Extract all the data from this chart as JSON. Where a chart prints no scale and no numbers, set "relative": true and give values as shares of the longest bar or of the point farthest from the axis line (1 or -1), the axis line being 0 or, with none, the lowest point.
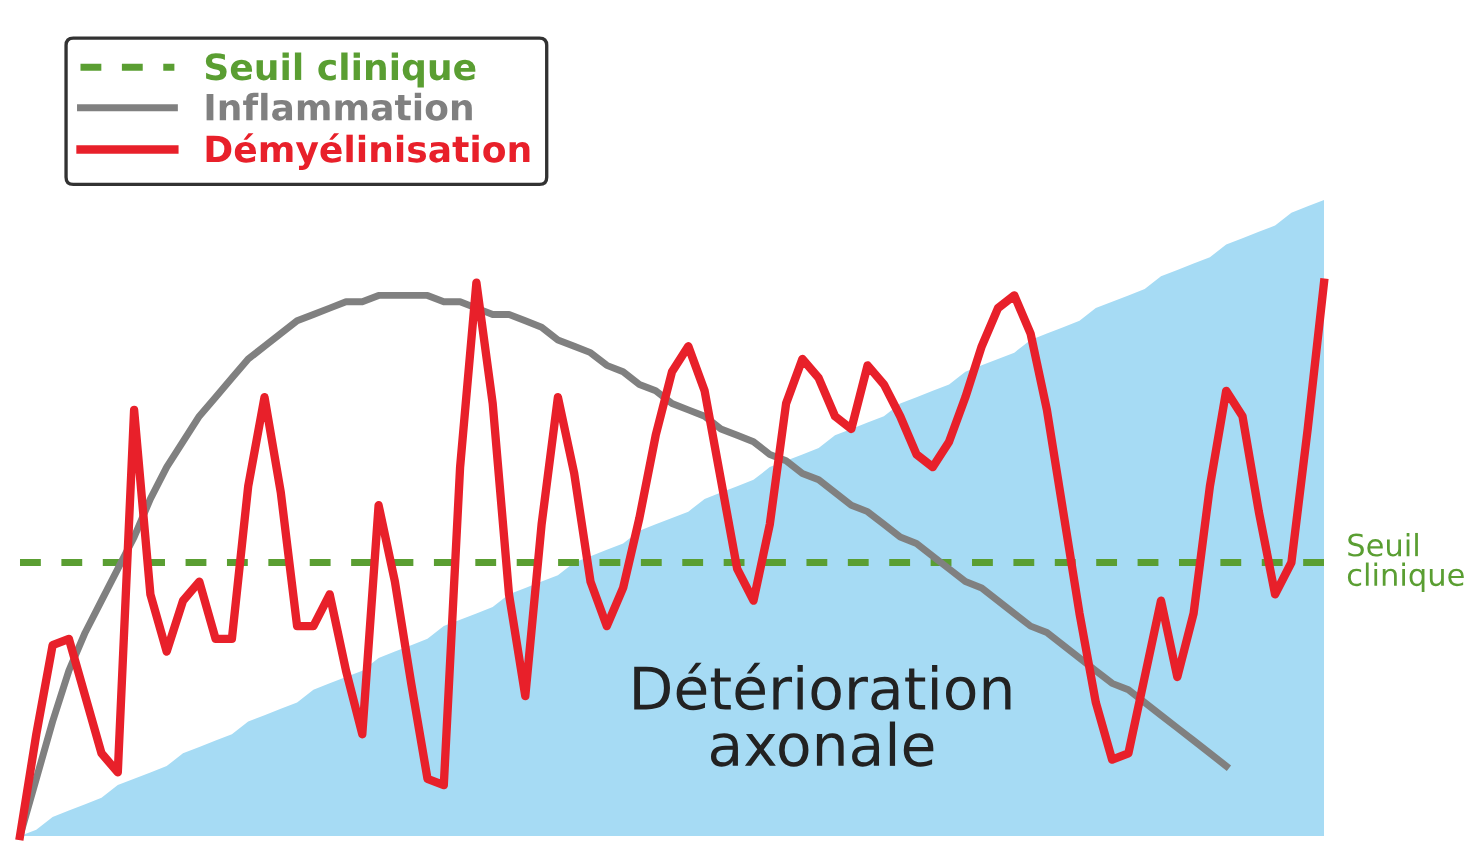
{
  "chart_data": {
    "type": "line",
    "relative": true,
    "legend": "top left",
    "marker": "none",
    "annotations": [
      "Détérioration\naxonale",
      "Seuil\nclinique"
    ],
    "categories": [
      null,
      null,
      null,
      null,
      null,
      null,
      null,
      null,
      null,
      null,
      null,
      null,
      null,
      null,
      null,
      null,
      null,
      null,
      null,
      null,
      null,
      null,
      null,
      null,
      null,
      null,
      null,
      null,
      null,
      null,
      null,
      null,
      null,
      null,
      null,
      null,
      null,
      null,
      null,
      null,
      null,
      null,
      null,
      null,
      null,
      null,
      null,
      null,
      null,
      null,
      null,
      null,
      null,
      null,
      null,
      null,
      null,
      null,
      null,
      null,
      null,
      null,
      null,
      null,
      null,
      null,
      null,
      null,
      null,
      null,
      null,
      null,
      null,
      null,
      null,
      null,
      null,
      null,
      null,
      null,
      null
    ],
    "series": [
      {
        "type": "area",
        "color": "#a6dbf4",
        "values": [
          0,
          0.01,
          0.03,
          0.04,
          0.05,
          0.06,
          0.08,
          0.09,
          0.1,
          0.11,
          0.13,
          0.14,
          0.15,
          0.16,
          0.18,
          0.19,
          0.2,
          0.21,
          0.23,
          0.24,
          0.25,
          0.26,
          0.28,
          0.29,
          0.3,
          0.31,
          0.33,
          0.34,
          0.35,
          0.36,
          0.38,
          0.39,
          0.4,
          0.41,
          0.43,
          0.44,
          0.45,
          0.46,
          0.48,
          0.49,
          0.5,
          0.51,
          0.53,
          0.54,
          0.55,
          0.56,
          0.58,
          0.59,
          0.6,
          0.61,
          0.63,
          0.64,
          0.65,
          0.66,
          0.68,
          0.69,
          0.7,
          0.71,
          0.73,
          0.74,
          0.75,
          0.76,
          0.78,
          0.79,
          0.8,
          0.81,
          0.83,
          0.84,
          0.85,
          0.86,
          0.88,
          0.89,
          0.9,
          0.91,
          0.93,
          0.94,
          0.95,
          0.96,
          0.98,
          0.99,
          1
        ]
      },
      {
        "name": "Seuil clinique",
        "line_style": "dashed",
        "color": "#5a9e32",
        "values": [
          0.43,
          0.43,
          0.43,
          0.43,
          0.43,
          0.43,
          0.43,
          0.43,
          0.43,
          0.43,
          0.43,
          0.43,
          0.43,
          0.43,
          0.43,
          0.43,
          0.43,
          0.43,
          0.43,
          0.43,
          0.43,
          0.43,
          0.43,
          0.43,
          0.43,
          0.43,
          0.43,
          0.43,
          0.43,
          0.43,
          0.43,
          0.43,
          0.43,
          0.43,
          0.43,
          0.43,
          0.43,
          0.43,
          0.43,
          0.43,
          0.43,
          0.43,
          0.43,
          0.43,
          0.43,
          0.43,
          0.43,
          0.43,
          0.43,
          0.43,
          0.43,
          0.43,
          0.43,
          0.43,
          0.43,
          0.43,
          0.43,
          0.43,
          0.43,
          0.43,
          0.43,
          0.43,
          0.43,
          0.43,
          0.43,
          0.43,
          0.43,
          0.43,
          0.43,
          0.43,
          0.43,
          0.43,
          0.43,
          0.43,
          0.43,
          0.43,
          0.43,
          0.43,
          0.43,
          0.43,
          0.43
        ]
      },
      {
        "name": "Inflammation",
        "line_style": "solid",
        "color": "#808080",
        "values": [
          0.0,
          0.09,
          0.18,
          0.26,
          0.32,
          0.37,
          0.42,
          0.47,
          0.53,
          0.58,
          0.62,
          0.66,
          0.69,
          0.72,
          0.75,
          0.77,
          0.79,
          0.81,
          0.82,
          0.83,
          0.84,
          0.84,
          0.85,
          0.85,
          0.85,
          0.85,
          0.84,
          0.84,
          0.83,
          0.82,
          0.82,
          0.81,
          0.8,
          0.78,
          0.77,
          0.76,
          0.74,
          0.73,
          0.71,
          0.7,
          0.68,
          0.67,
          0.66,
          0.64,
          0.63,
          0.62,
          0.6,
          0.59,
          0.57,
          0.56,
          0.54,
          0.52,
          0.51,
          0.49,
          0.47,
          0.46,
          0.44,
          0.42,
          0.4,
          0.39,
          0.37,
          0.35,
          0.33,
          0.32,
          0.3,
          0.28,
          0.26,
          0.24,
          0.23,
          0.21,
          0.19,
          0.17,
          0.15,
          0.13,
          0.11,
          null,
          null,
          null,
          null,
          null,
          null
        ]
      },
      {
        "name": "Démyélinisation",
        "line_style": "solid",
        "color": "#e8202a",
        "values": [
          0.0,
          0.16,
          0.3,
          0.31,
          0.22,
          0.13,
          0.1,
          0.67,
          0.38,
          0.29,
          0.37,
          0.4,
          0.31,
          0.31,
          0.55,
          0.69,
          0.54,
          0.33,
          0.33,
          0.38,
          0.26,
          0.16,
          0.52,
          0.4,
          0.24,
          0.09,
          0.08,
          0.58,
          0.87,
          0.68,
          0.38,
          0.22,
          0.49,
          0.69,
          0.57,
          0.4,
          0.33,
          0.39,
          0.5,
          0.63,
          0.73,
          0.77,
          0.7,
          0.56,
          0.42,
          0.37,
          0.49,
          0.68,
          0.75,
          0.72,
          0.66,
          0.64,
          0.74,
          0.71,
          0.66,
          0.6,
          0.58,
          0.62,
          0.69,
          0.77,
          0.83,
          0.85,
          0.79,
          0.67,
          0.51,
          0.35,
          0.21,
          0.12,
          0.13,
          0.25,
          0.37,
          0.25,
          0.35,
          0.55,
          0.7,
          0.66,
          0.51,
          0.38,
          0.43,
          0.64,
          0.87
        ]
      }
    ]
  }
}
